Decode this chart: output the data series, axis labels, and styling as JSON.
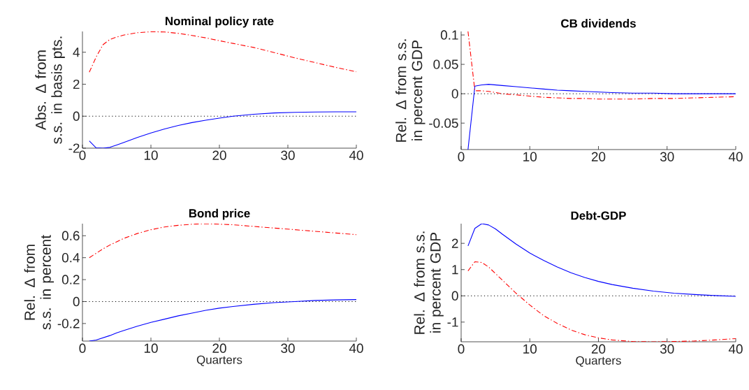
{
  "chart_data": [
    {
      "type": "line",
      "title": "Nominal policy rate",
      "ylabel": "Abs. Δ from s.s. in basis pts.",
      "x": [
        1,
        2,
        3,
        4,
        5,
        6,
        8,
        10,
        12,
        14,
        16,
        18,
        20,
        22,
        25,
        28,
        31,
        34,
        37,
        40
      ],
      "xlim": [
        0,
        40
      ],
      "xticks": [
        0,
        10,
        20,
        30,
        40
      ],
      "ylim": [
        -2,
        5.3
      ],
      "yticks": [
        -2,
        0,
        2,
        4
      ],
      "series": [
        {
          "color": "#0000ff",
          "line_style": "solid",
          "values": [
            -1.55,
            -1.98,
            -2.0,
            -1.95,
            -1.8,
            -1.65,
            -1.33,
            -1.05,
            -0.8,
            -0.58,
            -0.4,
            -0.25,
            -0.12,
            0.0,
            0.12,
            0.2,
            0.24,
            0.26,
            0.27,
            0.27
          ]
        },
        {
          "color": "#ff0000",
          "line_style": "dashdot",
          "values": [
            2.75,
            3.7,
            4.47,
            4.8,
            4.95,
            5.07,
            5.22,
            5.28,
            5.27,
            5.18,
            5.05,
            4.9,
            4.72,
            4.55,
            4.3,
            3.98,
            3.65,
            3.35,
            3.05,
            2.78
          ]
        }
      ],
      "ref_lines": [
        {
          "axis": "y",
          "value": 0,
          "color": "#000000",
          "line_style": "dotted"
        }
      ]
    },
    {
      "type": "line",
      "title": "CB dividends",
      "ylabel": "Rel. Δ from s.s. in percent GDP",
      "x": [
        1,
        2,
        3,
        4,
        5,
        6,
        8,
        10,
        12,
        14,
        16,
        18,
        20,
        22,
        25,
        28,
        31,
        34,
        37,
        40
      ],
      "xlim": [
        0,
        40
      ],
      "xticks": [
        0,
        10,
        20,
        30,
        40
      ],
      "ylim": [
        -0.095,
        0.106
      ],
      "yticks": [
        -0.05,
        0,
        0.05,
        0.1
      ],
      "series": [
        {
          "color": "#0000ff",
          "line_style": "solid",
          "values": [
            -0.095,
            0.013,
            0.015,
            0.016,
            0.015,
            0.014,
            0.012,
            0.01,
            0.008,
            0.006,
            0.005,
            0.004,
            0.003,
            0.002,
            0.001,
            0.001,
            0.0,
            0.0,
            0.0,
            0.0
          ]
        },
        {
          "color": "#ff0000",
          "line_style": "dashdot",
          "values": [
            0.106,
            0.005,
            0.005,
            0.004,
            0.002,
            0.0,
            -0.002,
            -0.004,
            -0.006,
            -0.007,
            -0.008,
            -0.008,
            -0.009,
            -0.009,
            -0.009,
            -0.008,
            -0.008,
            -0.007,
            -0.006,
            -0.005
          ]
        }
      ],
      "ref_lines": [
        {
          "axis": "y",
          "value": 0,
          "color": "#000000",
          "line_style": "dotted"
        }
      ]
    },
    {
      "type": "line",
      "title": "Bond price",
      "xlabel": "Quarters",
      "ylabel": "Rel. Δ from s.s. in percent",
      "x": [
        1,
        2,
        3,
        4,
        5,
        6,
        8,
        10,
        12,
        14,
        16,
        18,
        20,
        22,
        25,
        28,
        31,
        34,
        37,
        40
      ],
      "xlim": [
        0,
        40
      ],
      "xticks": [
        0,
        10,
        20,
        30,
        40
      ],
      "ylim": [
        -0.36,
        0.71
      ],
      "yticks": [
        -0.2,
        0,
        0.2,
        0.4,
        0.6
      ],
      "series": [
        {
          "color": "#0000ff",
          "line_style": "solid",
          "values": [
            -0.36,
            -0.35,
            -0.33,
            -0.31,
            -0.285,
            -0.265,
            -0.225,
            -0.19,
            -0.16,
            -0.13,
            -0.105,
            -0.08,
            -0.06,
            -0.045,
            -0.025,
            -0.01,
            0.0,
            0.01,
            0.015,
            0.018
          ]
        },
        {
          "color": "#ff0000",
          "line_style": "dashdot",
          "values": [
            0.4,
            0.44,
            0.48,
            0.515,
            0.545,
            0.575,
            0.62,
            0.655,
            0.68,
            0.695,
            0.705,
            0.71,
            0.705,
            0.7,
            0.685,
            0.67,
            0.655,
            0.64,
            0.625,
            0.61
          ]
        }
      ],
      "ref_lines": [
        {
          "axis": "y",
          "value": 0,
          "color": "#000000",
          "line_style": "dotted"
        }
      ]
    },
    {
      "type": "line",
      "title": "Debt-GDP",
      "xlabel": "Quarters",
      "ylabel": "Rel. Δ from s.s. in percent GDP",
      "x": [
        1,
        2,
        3,
        4,
        5,
        6,
        8,
        10,
        12,
        14,
        16,
        18,
        20,
        22,
        25,
        28,
        31,
        34,
        37,
        40
      ],
      "xlim": [
        0,
        40
      ],
      "xticks": [
        0,
        10,
        20,
        30,
        40
      ],
      "ylim": [
        -1.75,
        2.75
      ],
      "yticks": [
        -1,
        0,
        1,
        2
      ],
      "series": [
        {
          "color": "#0000ff",
          "line_style": "solid",
          "values": [
            1.9,
            2.57,
            2.75,
            2.7,
            2.55,
            2.35,
            1.97,
            1.63,
            1.35,
            1.1,
            0.88,
            0.7,
            0.55,
            0.43,
            0.29,
            0.18,
            0.1,
            0.05,
            0.01,
            -0.02
          ]
        },
        {
          "color": "#ff0000",
          "line_style": "dashdot",
          "values": [
            0.95,
            1.3,
            1.27,
            1.1,
            0.85,
            0.6,
            0.1,
            -0.35,
            -0.75,
            -1.05,
            -1.3,
            -1.48,
            -1.6,
            -1.68,
            -1.74,
            -1.75,
            -1.74,
            -1.72,
            -1.68,
            -1.63
          ]
        }
      ],
      "ref_lines": [
        {
          "axis": "y",
          "value": 0,
          "color": "#000000",
          "line_style": "dotted"
        }
      ]
    }
  ]
}
